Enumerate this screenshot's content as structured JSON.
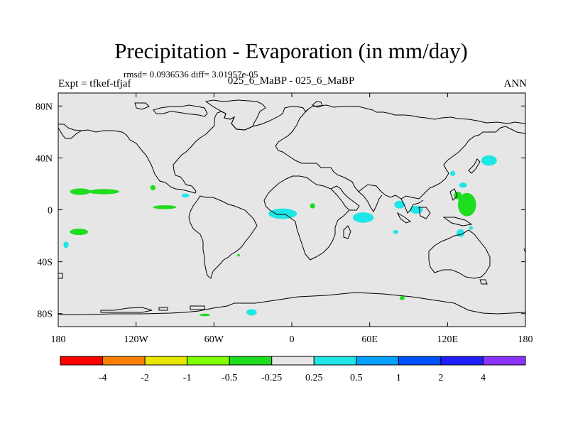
{
  "header": {
    "title": "Precipitation - Evaporation (in mm/day)",
    "stats": "rmsd= 0.0936536 diff= 3.01957e-05",
    "expt": "Expt = tfkef-tfjaf",
    "subtitle": "025_6_MaBP - 025_6_MaBP",
    "season": "ANN"
  },
  "map": {
    "projection": "cylindrical equidistant",
    "lon_range": [
      -180,
      180
    ],
    "lat_range": [
      -90,
      90
    ],
    "ocean_color": "#e6e6e6",
    "outline_color": "#000000"
  },
  "axes": {
    "x_ticks": [
      {
        "lon": -180,
        "label": "180"
      },
      {
        "lon": -120,
        "label": "120W"
      },
      {
        "lon": -60,
        "label": "60W"
      },
      {
        "lon": 0,
        "label": "0"
      },
      {
        "lon": 60,
        "label": "60E"
      },
      {
        "lon": 120,
        "label": "120E"
      },
      {
        "lon": 180,
        "label": "180"
      }
    ],
    "y_ticks": [
      {
        "lat": 80,
        "label": "80N"
      },
      {
        "lat": 40,
        "label": "40N"
      },
      {
        "lat": 0,
        "label": "0"
      },
      {
        "lat": -40,
        "label": "40S"
      },
      {
        "lat": -80,
        "label": "80S"
      }
    ]
  },
  "colorbar": {
    "colors": [
      "#ff0000",
      "#ff8000",
      "#e6e600",
      "#80ff00",
      "#1edc1e",
      "#e6e6e6",
      "#1ee6e6",
      "#00a0ff",
      "#0050ff",
      "#1e1eff",
      "#8c32ff"
    ],
    "labels": [
      "-4",
      "-2",
      "-1",
      "-0.5",
      "-0.25",
      "0.25",
      "0.5",
      "1",
      "2",
      "4"
    ]
  },
  "anomalies": [
    {
      "lon": -163,
      "lat": 14,
      "rlon": 8,
      "rlat": 2.5,
      "level": "-0.25"
    },
    {
      "lon": -145,
      "lat": 14,
      "rlon": 12,
      "rlat": 2,
      "level": "-0.25"
    },
    {
      "lon": -164,
      "lat": -17,
      "rlon": 7,
      "rlat": 2.5,
      "level": "-0.25"
    },
    {
      "lon": -107,
      "lat": 17,
      "rlon": 2,
      "rlat": 2,
      "level": "-0.25"
    },
    {
      "lon": -98,
      "lat": 2,
      "rlon": 9,
      "rlat": 1.5,
      "level": "-0.25"
    },
    {
      "lon": -174,
      "lat": -27,
      "rlon": 2,
      "rlat": 2.5,
      "level": "0.25"
    },
    {
      "lon": -82,
      "lat": 11,
      "rlon": 3,
      "rlat": 1.5,
      "level": "0.25"
    },
    {
      "lon": -7,
      "lat": -3,
      "rlon": 11,
      "rlat": 4,
      "level": "0.25"
    },
    {
      "lon": 55,
      "lat": -6,
      "rlon": 8,
      "rlat": 4,
      "level": "0.25"
    },
    {
      "lon": 83,
      "lat": 4,
      "rlon": 4,
      "rlat": 3,
      "level": "0.25"
    },
    {
      "lon": 96,
      "lat": 0,
      "rlon": 5,
      "rlat": 3,
      "level": "0.25"
    },
    {
      "lon": 132,
      "lat": 19,
      "rlon": 3,
      "rlat": 2,
      "level": "0.25"
    },
    {
      "lon": 130,
      "lat": -18,
      "rlon": 3,
      "rlat": 3,
      "level": "0.25"
    },
    {
      "lon": 138,
      "lat": -14,
      "rlon": 1.5,
      "rlat": 1.5,
      "level": "0.25"
    },
    {
      "lon": 152,
      "lat": 38,
      "rlon": 6,
      "rlat": 4,
      "level": "0.25"
    },
    {
      "lon": 124,
      "lat": 28,
      "rlon": 2,
      "rlat": 2,
      "level": "0.25"
    },
    {
      "lon": -31,
      "lat": -79,
      "rlon": 4,
      "rlat": 2.5,
      "level": "0.25"
    },
    {
      "lon": 80,
      "lat": -17,
      "rlon": 2,
      "rlat": 1.5,
      "level": "0.25"
    },
    {
      "lon": 135,
      "lat": 4,
      "rlon": 7,
      "rlat": 9,
      "level": "-0.25"
    },
    {
      "lon": 128,
      "lat": 11,
      "rlon": 3,
      "rlat": 3,
      "level": "-0.25"
    },
    {
      "lon": 16,
      "lat": 3,
      "rlon": 2,
      "rlat": 2,
      "level": "-0.25"
    },
    {
      "lon": -67,
      "lat": -81,
      "rlon": 4,
      "rlat": 1,
      "level": "-0.25"
    },
    {
      "lon": 85,
      "lat": -68,
      "rlon": 2,
      "rlat": 1.5,
      "level": "-0.25"
    },
    {
      "lon": -41,
      "lat": -35,
      "rlon": 1,
      "rlat": 1,
      "level": "-0.25"
    }
  ]
}
